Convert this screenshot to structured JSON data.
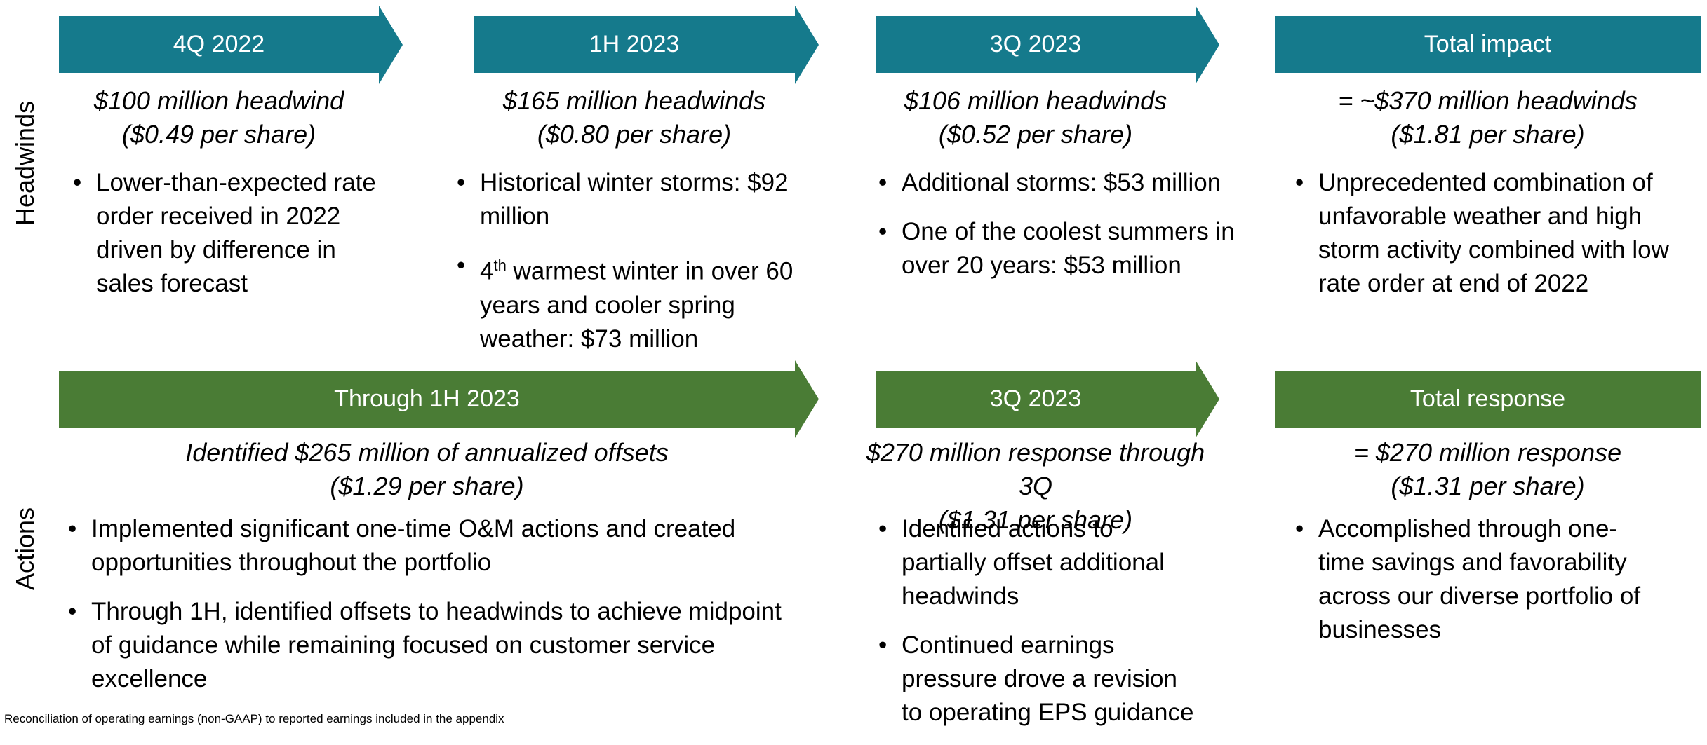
{
  "headwinds": {
    "label": "Headwinds",
    "columns": [
      {
        "header": "4Q 2022",
        "headline": [
          "$100 million headwind",
          "($0.49 per share)"
        ],
        "bullets": [
          "Lower-than-expected rate order received in 2022 driven by difference in sales forecast"
        ]
      },
      {
        "header": "1H 2023",
        "headline": [
          "$165 million headwinds",
          "($0.80 per share)"
        ],
        "bullets": [
          "Historical winter storms: $92 million",
          {
            "pre": "4",
            "sup": "th",
            "rest": " warmest winter in over 60 years and cooler spring weather: $73 million"
          }
        ]
      },
      {
        "header": "3Q 2023",
        "headline": [
          "$106 million headwinds",
          "($0.52 per share)"
        ],
        "bullets": [
          "Additional storms: $53 million",
          "One of the coolest summers in over 20 years: $53 million"
        ]
      },
      {
        "header": "Total impact",
        "headline": [
          "= ~$370 million headwinds",
          "($1.81 per share)"
        ],
        "bullets": [
          "Unprecedented combination of unfavorable weather and high storm activity combined with low rate order at end of 2022"
        ]
      }
    ]
  },
  "actions": {
    "label": "Actions",
    "columns": [
      {
        "header": "Through 1H 2023",
        "headline": [
          "Identified $265 million of annualized offsets",
          "($1.29 per share)"
        ],
        "bullets": [
          "Implemented significant one-time O&M actions and created opportunities throughout the portfolio",
          "Through 1H, identified offsets to headwinds to achieve midpoint of guidance while remaining focused on customer service excellence"
        ]
      },
      {
        "header": "3Q 2023",
        "headline": [
          "$270 million response through 3Q",
          "($1.31 per share)"
        ],
        "bullets": [
          "Identified actions to partially offset additional headwinds",
          "Continued earnings pressure drove a revision to operating EPS guidance"
        ]
      },
      {
        "header": "Total response",
        "headline": [
          "= $270 million response",
          "($1.31 per share)"
        ],
        "bullets": [
          "Accomplished through one-time savings and favorability across our diverse portfolio of businesses"
        ]
      }
    ]
  },
  "footnote": "Reconciliation of operating earnings (non-GAAP) to reported earnings included in the appendix"
}
